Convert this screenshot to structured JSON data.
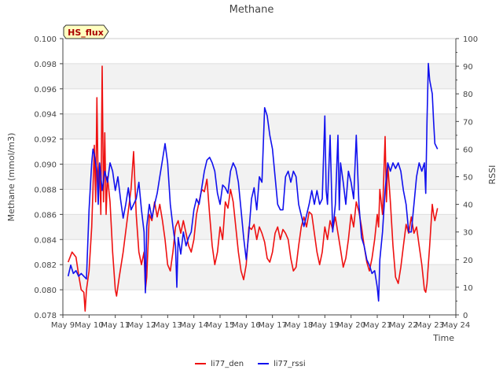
{
  "chart_data": {
    "type": "line",
    "title": "Methane",
    "xlabel": "Time",
    "ylabel_left": "Methane (mmol/m3)",
    "ylabel_right": "RSSI",
    "badge": "HS_flux",
    "x_ticks": [
      "May 9",
      "May 10",
      "May 11",
      "May 12",
      "May 13",
      "May 14",
      "May 15",
      "May 16",
      "May 17",
      "May 18",
      "May 19",
      "May 20",
      "May 21",
      "May 22",
      "May 23",
      "May 24"
    ],
    "xlim": [
      9,
      24
    ],
    "ylim_left": [
      0.078,
      0.1
    ],
    "ylim_right": [
      0,
      100
    ],
    "y_left_ticks": [
      "0.078",
      "0.080",
      "0.082",
      "0.084",
      "0.086",
      "0.088",
      "0.090",
      "0.092",
      "0.094",
      "0.096",
      "0.098",
      "0.100"
    ],
    "y_right_ticks": [
      "0",
      "10",
      "20",
      "30",
      "40",
      "50",
      "60",
      "70",
      "80",
      "90",
      "100"
    ],
    "grid": true,
    "legend_position": "bottom",
    "series": [
      {
        "name": "li77_den",
        "axis": "left",
        "color": "#ee1111",
        "points": [
          [
            9.2,
            0.0822
          ],
          [
            9.35,
            0.083
          ],
          [
            9.5,
            0.0826
          ],
          [
            9.6,
            0.0812
          ],
          [
            9.7,
            0.08
          ],
          [
            9.8,
            0.0798
          ],
          [
            9.85,
            0.0783
          ],
          [
            9.9,
            0.08
          ],
          [
            10.0,
            0.0815
          ],
          [
            10.1,
            0.085
          ],
          [
            10.15,
            0.088
          ],
          [
            10.2,
            0.0915
          ],
          [
            10.25,
            0.087
          ],
          [
            10.3,
            0.0953
          ],
          [
            10.35,
            0.088
          ],
          [
            10.4,
            0.09
          ],
          [
            10.45,
            0.086
          ],
          [
            10.5,
            0.0978
          ],
          [
            10.55,
            0.087
          ],
          [
            10.6,
            0.0925
          ],
          [
            10.65,
            0.086
          ],
          [
            10.7,
            0.089
          ],
          [
            10.8,
            0.087
          ],
          [
            10.9,
            0.083
          ],
          [
            11.0,
            0.08
          ],
          [
            11.05,
            0.0795
          ],
          [
            11.15,
            0.081
          ],
          [
            11.3,
            0.083
          ],
          [
            11.45,
            0.0855
          ],
          [
            11.6,
            0.088
          ],
          [
            11.7,
            0.091
          ],
          [
            11.8,
            0.086
          ],
          [
            11.9,
            0.083
          ],
          [
            12.0,
            0.082
          ],
          [
            12.1,
            0.083
          ],
          [
            12.15,
            0.08
          ],
          [
            12.2,
            0.081
          ],
          [
            12.3,
            0.086
          ],
          [
            12.4,
            0.0855
          ],
          [
            12.5,
            0.087
          ],
          [
            12.6,
            0.0858
          ],
          [
            12.7,
            0.0868
          ],
          [
            12.8,
            0.0855
          ],
          [
            12.9,
            0.084
          ],
          [
            13.0,
            0.082
          ],
          [
            13.1,
            0.0815
          ],
          [
            13.2,
            0.083
          ],
          [
            13.3,
            0.085
          ],
          [
            13.4,
            0.0855
          ],
          [
            13.5,
            0.0845
          ],
          [
            13.6,
            0.0855
          ],
          [
            13.7,
            0.0845
          ],
          [
            13.8,
            0.0835
          ],
          [
            13.9,
            0.083
          ],
          [
            14.0,
            0.084
          ],
          [
            14.1,
            0.086
          ],
          [
            14.2,
            0.087
          ],
          [
            14.3,
            0.088
          ],
          [
            14.4,
            0.0878
          ],
          [
            14.5,
            0.0888
          ],
          [
            14.6,
            0.086
          ],
          [
            14.7,
            0.0835
          ],
          [
            14.8,
            0.082
          ],
          [
            14.9,
            0.083
          ],
          [
            15.0,
            0.085
          ],
          [
            15.1,
            0.084
          ],
          [
            15.2,
            0.087
          ],
          [
            15.3,
            0.0865
          ],
          [
            15.4,
            0.088
          ],
          [
            15.5,
            0.087
          ],
          [
            15.6,
            0.085
          ],
          [
            15.7,
            0.083
          ],
          [
            15.8,
            0.0815
          ],
          [
            15.9,
            0.0808
          ],
          [
            16.0,
            0.082
          ],
          [
            16.1,
            0.085
          ],
          [
            16.2,
            0.0848
          ],
          [
            16.3,
            0.0852
          ],
          [
            16.4,
            0.084
          ],
          [
            16.5,
            0.085
          ],
          [
            16.6,
            0.0845
          ],
          [
            16.7,
            0.0838
          ],
          [
            16.8,
            0.0825
          ],
          [
            16.9,
            0.0822
          ],
          [
            17.0,
            0.083
          ],
          [
            17.1,
            0.0845
          ],
          [
            17.2,
            0.085
          ],
          [
            17.3,
            0.084
          ],
          [
            17.4,
            0.0848
          ],
          [
            17.5,
            0.0845
          ],
          [
            17.6,
            0.084
          ],
          [
            17.7,
            0.0825
          ],
          [
            17.8,
            0.0815
          ],
          [
            17.9,
            0.0818
          ],
          [
            18.0,
            0.0835
          ],
          [
            18.1,
            0.085
          ],
          [
            18.2,
            0.0858
          ],
          [
            18.3,
            0.085
          ],
          [
            18.4,
            0.0862
          ],
          [
            18.5,
            0.086
          ],
          [
            18.6,
            0.0845
          ],
          [
            18.7,
            0.083
          ],
          [
            18.8,
            0.082
          ],
          [
            18.9,
            0.083
          ],
          [
            19.0,
            0.085
          ],
          [
            19.1,
            0.084
          ],
          [
            19.2,
            0.0855
          ],
          [
            19.3,
            0.0848
          ],
          [
            19.4,
            0.0858
          ],
          [
            19.5,
            0.0845
          ],
          [
            19.6,
            0.0832
          ],
          [
            19.7,
            0.0818
          ],
          [
            19.8,
            0.0825
          ],
          [
            19.9,
            0.084
          ],
          [
            20.0,
            0.086
          ],
          [
            20.1,
            0.085
          ],
          [
            20.2,
            0.087
          ],
          [
            20.3,
            0.0862
          ],
          [
            20.4,
            0.085
          ],
          [
            20.5,
            0.0835
          ],
          [
            20.6,
            0.0822
          ],
          [
            20.7,
            0.0815
          ],
          [
            20.8,
            0.0825
          ],
          [
            20.9,
            0.084
          ],
          [
            21.0,
            0.086
          ],
          [
            21.05,
            0.085
          ],
          [
            21.1,
            0.088
          ],
          [
            21.2,
            0.086
          ],
          [
            21.3,
            0.0922
          ],
          [
            21.35,
            0.087
          ],
          [
            21.4,
            0.09
          ],
          [
            21.5,
            0.087
          ],
          [
            21.6,
            0.0835
          ],
          [
            21.7,
            0.081
          ],
          [
            21.8,
            0.0805
          ],
          [
            21.9,
            0.0818
          ],
          [
            22.0,
            0.0835
          ],
          [
            22.1,
            0.0852
          ],
          [
            22.2,
            0.0845
          ],
          [
            22.3,
            0.0858
          ],
          [
            22.4,
            0.0845
          ],
          [
            22.5,
            0.085
          ],
          [
            22.6,
            0.0835
          ],
          [
            22.7,
            0.082
          ],
          [
            22.8,
            0.08
          ],
          [
            22.85,
            0.0798
          ],
          [
            22.9,
            0.0805
          ],
          [
            23.0,
            0.0835
          ],
          [
            23.1,
            0.0868
          ],
          [
            23.15,
            0.086
          ],
          [
            23.2,
            0.0855
          ],
          [
            23.3,
            0.0865
          ]
        ]
      },
      {
        "name": "li77_rssi",
        "axis": "right",
        "color": "#1111ee",
        "points": [
          [
            9.2,
            14
          ],
          [
            9.3,
            18
          ],
          [
            9.4,
            15
          ],
          [
            9.5,
            16
          ],
          [
            9.6,
            14
          ],
          [
            9.7,
            15
          ],
          [
            9.8,
            14
          ],
          [
            9.9,
            13
          ],
          [
            10.0,
            38
          ],
          [
            10.1,
            55
          ],
          [
            10.15,
            60
          ],
          [
            10.2,
            58
          ],
          [
            10.3,
            52
          ],
          [
            10.35,
            40
          ],
          [
            10.4,
            55
          ],
          [
            10.5,
            45
          ],
          [
            10.6,
            52
          ],
          [
            10.7,
            48
          ],
          [
            10.8,
            55
          ],
          [
            10.9,
            52
          ],
          [
            11.0,
            45
          ],
          [
            11.1,
            50
          ],
          [
            11.2,
            42
          ],
          [
            11.3,
            35
          ],
          [
            11.4,
            40
          ],
          [
            11.5,
            46
          ],
          [
            11.6,
            38
          ],
          [
            11.7,
            40
          ],
          [
            11.8,
            42
          ],
          [
            11.9,
            48
          ],
          [
            12.0,
            38
          ],
          [
            12.1,
            30
          ],
          [
            12.15,
            8
          ],
          [
            12.2,
            32
          ],
          [
            12.3,
            40
          ],
          [
            12.4,
            35
          ],
          [
            12.5,
            40
          ],
          [
            12.6,
            44
          ],
          [
            12.7,
            50
          ],
          [
            12.8,
            56
          ],
          [
            12.9,
            62
          ],
          [
            13.0,
            55
          ],
          [
            13.1,
            40
          ],
          [
            13.2,
            32
          ],
          [
            13.3,
            25
          ],
          [
            13.35,
            10
          ],
          [
            13.4,
            28
          ],
          [
            13.5,
            22
          ],
          [
            13.6,
            30
          ],
          [
            13.7,
            25
          ],
          [
            13.8,
            28
          ],
          [
            13.9,
            30
          ],
          [
            14.0,
            38
          ],
          [
            14.1,
            42
          ],
          [
            14.2,
            40
          ],
          [
            14.3,
            46
          ],
          [
            14.4,
            52
          ],
          [
            14.5,
            56
          ],
          [
            14.6,
            57
          ],
          [
            14.7,
            55
          ],
          [
            14.8,
            52
          ],
          [
            14.9,
            44
          ],
          [
            15.0,
            40
          ],
          [
            15.1,
            47
          ],
          [
            15.2,
            46
          ],
          [
            15.3,
            44
          ],
          [
            15.4,
            52
          ],
          [
            15.5,
            55
          ],
          [
            15.6,
            53
          ],
          [
            15.7,
            48
          ],
          [
            15.8,
            38
          ],
          [
            15.9,
            28
          ],
          [
            16.0,
            20
          ],
          [
            16.1,
            30
          ],
          [
            16.2,
            42
          ],
          [
            16.3,
            46
          ],
          [
            16.4,
            38
          ],
          [
            16.5,
            50
          ],
          [
            16.6,
            48
          ],
          [
            16.7,
            75
          ],
          [
            16.8,
            72
          ],
          [
            16.9,
            65
          ],
          [
            17.0,
            60
          ],
          [
            17.1,
            50
          ],
          [
            17.2,
            40
          ],
          [
            17.3,
            38
          ],
          [
            17.4,
            38
          ],
          [
            17.5,
            50
          ],
          [
            17.6,
            52
          ],
          [
            17.7,
            48
          ],
          [
            17.8,
            52
          ],
          [
            17.9,
            50
          ],
          [
            18.0,
            40
          ],
          [
            18.1,
            36
          ],
          [
            18.2,
            32
          ],
          [
            18.3,
            36
          ],
          [
            18.4,
            40
          ],
          [
            18.5,
            45
          ],
          [
            18.6,
            40
          ],
          [
            18.7,
            45
          ],
          [
            18.8,
            40
          ],
          [
            18.9,
            42
          ],
          [
            19.0,
            72
          ],
          [
            19.05,
            45
          ],
          [
            19.1,
            40
          ],
          [
            19.2,
            65
          ],
          [
            19.3,
            30
          ],
          [
            19.4,
            40
          ],
          [
            19.5,
            65
          ],
          [
            19.55,
            38
          ],
          [
            19.6,
            55
          ],
          [
            19.7,
            48
          ],
          [
            19.8,
            40
          ],
          [
            19.9,
            52
          ],
          [
            20.0,
            48
          ],
          [
            20.1,
            42
          ],
          [
            20.2,
            65
          ],
          [
            20.3,
            40
          ],
          [
            20.4,
            28
          ],
          [
            20.5,
            25
          ],
          [
            20.6,
            20
          ],
          [
            20.7,
            18
          ],
          [
            20.8,
            15
          ],
          [
            20.9,
            16
          ],
          [
            21.0,
            10
          ],
          [
            21.05,
            5
          ],
          [
            21.1,
            20
          ],
          [
            21.2,
            30
          ],
          [
            21.3,
            45
          ],
          [
            21.4,
            55
          ],
          [
            21.5,
            52
          ],
          [
            21.6,
            55
          ],
          [
            21.7,
            53
          ],
          [
            21.8,
            55
          ],
          [
            21.9,
            52
          ],
          [
            22.0,
            45
          ],
          [
            22.1,
            40
          ],
          [
            22.2,
            30
          ],
          [
            22.3,
            30
          ],
          [
            22.4,
            40
          ],
          [
            22.5,
            50
          ],
          [
            22.6,
            55
          ],
          [
            22.7,
            52
          ],
          [
            22.8,
            55
          ],
          [
            22.85,
            44
          ],
          [
            22.9,
            70
          ],
          [
            22.95,
            91
          ],
          [
            23.0,
            85
          ],
          [
            23.1,
            80
          ],
          [
            23.15,
            70
          ],
          [
            23.2,
            62
          ],
          [
            23.3,
            60
          ]
        ]
      }
    ]
  }
}
